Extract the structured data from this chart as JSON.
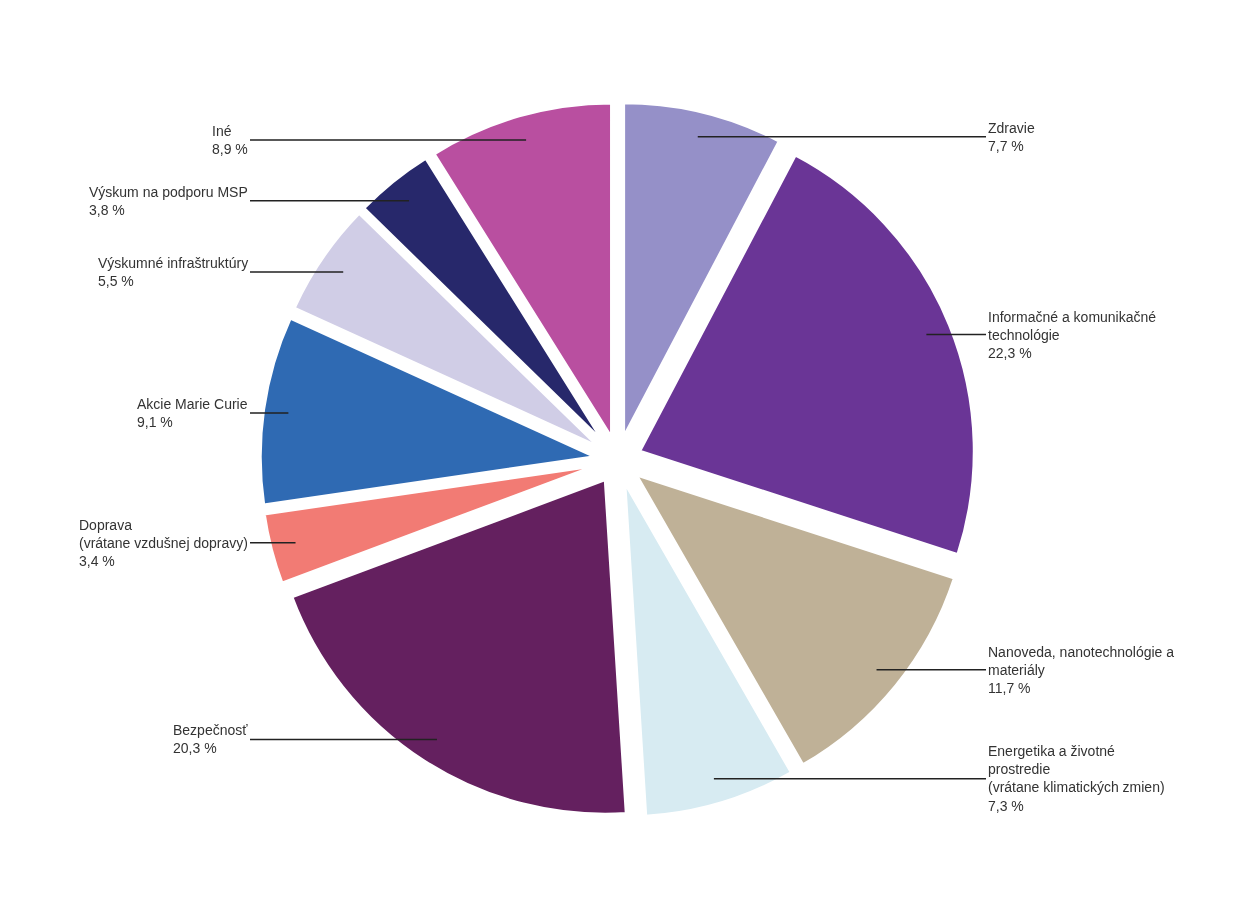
{
  "chart_data": {
    "type": "pie",
    "categories": [
      "Zdravie",
      "Informačné a komunikačné technológie",
      "Nanoveda, nanotechnológie a materiály",
      "Energetika a životné prostredie (vrátane klimatických zmien)",
      "Bezpečnosť",
      "Doprava (vrátane vzdušnej dopravy)",
      "Akcie Marie Curie",
      "Výskumné infraštruktúry",
      "Výskum na podporu MSP",
      "Iné"
    ],
    "values": [
      7.7,
      22.3,
      11.7,
      7.3,
      20.3,
      3.4,
      9.1,
      5.5,
      3.8,
      8.9
    ],
    "value_labels": [
      "7,7 %",
      "22,3 %",
      "11,7 %",
      "7,3 %",
      "20,3 %",
      "3,4 %",
      "9,1 %",
      "5,5 %",
      "3,8 %",
      "8,9 %"
    ],
    "colors": [
      "#9590c8",
      "#6a3596",
      "#bfb197",
      "#d7ebf2",
      "#64205f",
      "#f27b74",
      "#2f6ab3",
      "#d0cde6",
      "#27286b",
      "#b94fa0"
    ],
    "legend": false
  }
}
